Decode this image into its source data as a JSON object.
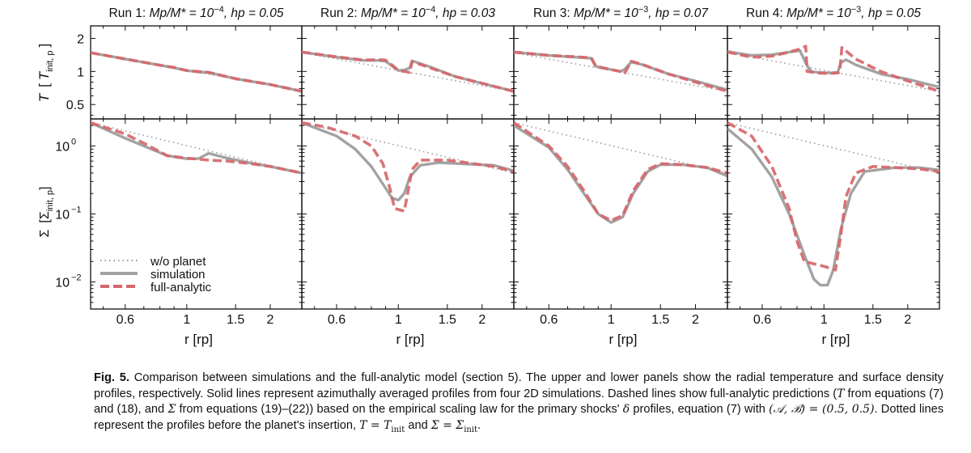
{
  "panel_titles": [
    {
      "run": "Run 1:",
      "ratio": "Mp/M* = 10",
      "exp": "−4",
      "h": "hp = 0.05"
    },
    {
      "run": "Run 2:",
      "ratio": "Mp/M* = 10",
      "exp": "−4",
      "h": "hp = 0.03"
    },
    {
      "run": "Run 3:",
      "ratio": "Mp/M* = 10",
      "exp": "−3",
      "h": "hp = 0.07"
    },
    {
      "run": "Run 4:",
      "ratio": "Mp/M* = 10",
      "exp": "−3",
      "h": "hp = 0.05"
    }
  ],
  "axes": {
    "top_ylabel": "T  [ T init, p ]",
    "bottom_ylabel": "Σ  [Σ init, p]",
    "xlabel": "r [rp]",
    "x_ticks": [
      "0.6",
      "1",
      "1.5",
      "2"
    ],
    "top_y_ticks": [
      "2",
      "1",
      "0.5"
    ],
    "bottom_y_ticks": [
      {
        "base": "10",
        "exp": "0"
      },
      {
        "base": "10",
        "exp": "−1"
      },
      {
        "base": "10",
        "exp": "−2"
      }
    ]
  },
  "legend": [
    "w/o planet",
    "simulation",
    "full-analytic"
  ],
  "colors": {
    "planet_free": "#999999",
    "simulation": "#a3a3a3",
    "analytic": "#d6676b"
  },
  "chart_data": {
    "type": "line",
    "x_scale": "log",
    "y_scale": "log",
    "xlim": [
      0.45,
      2.6
    ],
    "top_ylim": [
      0.37,
      2.6
    ],
    "bottom_ylim": [
      0.004,
      2.5
    ],
    "runs": [
      {
        "name": "Run 1",
        "T": {
          "no_planet": {
            "x": [
              0.45,
              2.6
            ],
            "y": [
              1.48,
              0.66
            ]
          },
          "simulation": {
            "x": [
              0.45,
              0.6,
              0.85,
              0.9,
              1.0,
              1.1,
              1.2,
              1.5,
              2.0,
              2.6
            ],
            "y": [
              1.48,
              1.3,
              1.11,
              1.08,
              1.02,
              0.99,
              0.98,
              0.86,
              0.76,
              0.66
            ]
          },
          "analytic": {
            "x": [
              0.45,
              0.6,
              0.85,
              0.9,
              1.0,
              1.1,
              1.2,
              1.5,
              2.0,
              2.6
            ],
            "y": [
              1.48,
              1.3,
              1.11,
              1.09,
              1.02,
              1.0,
              0.98,
              0.86,
              0.76,
              0.66
            ]
          }
        },
        "Sigma": {
          "no_planet": {
            "x": [
              0.45,
              2.6
            ],
            "y": [
              2.2,
              0.4
            ]
          },
          "simulation": {
            "x": [
              0.45,
              0.6,
              0.7,
              0.85,
              1.0,
              1.1,
              1.2,
              1.4,
              1.7,
              2.0,
              2.6
            ],
            "y": [
              2.2,
              1.3,
              1.0,
              0.72,
              0.65,
              0.65,
              0.78,
              0.66,
              0.56,
              0.5,
              0.4
            ]
          },
          "analytic": {
            "x": [
              0.45,
              0.6,
              0.7,
              0.85,
              1.0,
              1.1,
              1.2,
              1.4,
              1.7,
              2.0,
              2.6
            ],
            "y": [
              2.2,
              1.5,
              1.1,
              0.72,
              0.66,
              0.64,
              0.62,
              0.6,
              0.55,
              0.5,
              0.4
            ]
          }
        }
      },
      {
        "name": "Run 2",
        "T": {
          "no_planet": {
            "x": [
              0.45,
              2.6
            ],
            "y": [
              1.48,
              0.66
            ]
          },
          "simulation": {
            "x": [
              0.45,
              0.6,
              0.75,
              0.85,
              0.9,
              0.96,
              1.0,
              1.05,
              1.1,
              1.12,
              1.3,
              1.6,
              2.0,
              2.6
            ],
            "y": [
              1.5,
              1.35,
              1.26,
              1.26,
              1.24,
              1.1,
              1.02,
              1.03,
              1.08,
              1.25,
              1.1,
              0.9,
              0.78,
              0.66
            ]
          },
          "analytic": {
            "x": [
              0.45,
              0.6,
              0.75,
              0.85,
              0.9,
              0.96,
              1.0,
              1.05,
              1.1,
              1.12,
              1.3,
              1.6,
              2.0,
              2.6
            ],
            "y": [
              1.5,
              1.36,
              1.27,
              1.28,
              1.27,
              1.12,
              1.02,
              1.0,
              0.98,
              1.23,
              1.08,
              0.9,
              0.78,
              0.66
            ]
          }
        },
        "Sigma": {
          "no_planet": {
            "x": [
              0.45,
              2.6
            ],
            "y": [
              2.2,
              0.4
            ]
          },
          "simulation": {
            "x": [
              0.45,
              0.6,
              0.7,
              0.8,
              0.9,
              0.95,
              1.0,
              1.05,
              1.1,
              1.2,
              1.4,
              1.8,
              2.2,
              2.6
            ],
            "y": [
              2.2,
              1.4,
              0.9,
              0.5,
              0.24,
              0.17,
              0.16,
              0.2,
              0.35,
              0.52,
              0.57,
              0.54,
              0.52,
              0.43
            ]
          },
          "analytic": {
            "x": [
              0.45,
              0.55,
              0.7,
              0.8,
              0.88,
              0.93,
              0.97,
              1.05,
              1.08,
              1.12,
              1.2,
              1.5,
              1.8,
              2.2,
              2.6
            ],
            "y": [
              2.2,
              1.9,
              1.4,
              1.0,
              0.55,
              0.25,
              0.12,
              0.11,
              0.2,
              0.45,
              0.62,
              0.62,
              0.56,
              0.5,
              0.42
            ]
          }
        }
      },
      {
        "name": "Run 3",
        "T": {
          "no_planet": {
            "x": [
              0.45,
              2.6
            ],
            "y": [
              1.48,
              0.66
            ]
          },
          "simulation": {
            "x": [
              0.45,
              0.6,
              0.75,
              0.85,
              0.88,
              0.92,
              1.0,
              1.08,
              1.12,
              1.18,
              1.3,
              1.6,
              2.0,
              2.6
            ],
            "y": [
              1.5,
              1.4,
              1.35,
              1.32,
              1.12,
              1.08,
              1.04,
              1.0,
              1.05,
              1.22,
              1.15,
              0.95,
              0.82,
              0.68
            ]
          },
          "analytic": {
            "x": [
              0.45,
              0.6,
              0.75,
              0.85,
              0.88,
              0.92,
              1.0,
              1.08,
              1.12,
              1.18,
              1.3,
              1.6,
              2.0,
              2.6
            ],
            "y": [
              1.5,
              1.4,
              1.36,
              1.33,
              1.13,
              1.09,
              1.04,
              1.0,
              0.97,
              1.24,
              1.15,
              0.95,
              0.8,
              0.66
            ]
          }
        },
        "Sigma": {
          "no_planet": {
            "x": [
              0.45,
              2.6
            ],
            "y": [
              2.2,
              0.4
            ]
          },
          "simulation": {
            "x": [
              0.45,
              0.6,
              0.7,
              0.8,
              0.9,
              1.0,
              1.1,
              1.2,
              1.35,
              1.5,
              1.8,
              2.2,
              2.6
            ],
            "y": [
              2.0,
              0.95,
              0.45,
              0.2,
              0.1,
              0.075,
              0.09,
              0.2,
              0.42,
              0.53,
              0.53,
              0.48,
              0.36
            ]
          },
          "analytic": {
            "x": [
              0.45,
              0.6,
              0.7,
              0.8,
              0.9,
              1.0,
              1.1,
              1.2,
              1.35,
              1.5,
              1.8,
              2.2,
              2.6
            ],
            "y": [
              2.2,
              1.0,
              0.5,
              0.22,
              0.1,
              0.08,
              0.095,
              0.22,
              0.45,
              0.55,
              0.53,
              0.48,
              0.4
            ]
          }
        }
      },
      {
        "name": "Run 4",
        "T": {
          "no_planet": {
            "x": [
              0.45,
              2.6
            ],
            "y": [
              1.48,
              0.66
            ]
          },
          "simulation": {
            "x": [
              0.45,
              0.55,
              0.65,
              0.75,
              0.82,
              0.86,
              0.88,
              0.9,
              0.95,
              1.05,
              1.12,
              1.15,
              1.2,
              1.3,
              1.6,
              2.0,
              2.6
            ],
            "y": [
              1.52,
              1.4,
              1.42,
              1.5,
              1.55,
              1.2,
              1.08,
              1.0,
              0.98,
              0.97,
              0.98,
              1.2,
              1.28,
              1.15,
              0.95,
              0.85,
              0.72
            ]
          },
          "analytic": {
            "x": [
              0.45,
              0.55,
              0.65,
              0.75,
              0.82,
              0.86,
              0.87,
              0.9,
              0.95,
              1.05,
              1.12,
              1.14,
              1.16,
              1.3,
              1.6,
              2.0,
              2.6
            ],
            "y": [
              1.5,
              1.35,
              1.38,
              1.5,
              1.6,
              1.7,
              1.0,
              0.99,
              0.97,
              0.96,
              0.97,
              0.99,
              1.65,
              1.3,
              1.0,
              0.82,
              0.66
            ]
          }
        },
        "Sigma": {
          "no_planet": {
            "x": [
              0.45,
              2.6
            ],
            "y": [
              2.2,
              0.4
            ]
          },
          "simulation": {
            "x": [
              0.45,
              0.55,
              0.65,
              0.75,
              0.85,
              0.92,
              0.97,
              1.03,
              1.08,
              1.15,
              1.25,
              1.4,
              1.8,
              2.2,
              2.6
            ],
            "y": [
              1.8,
              0.9,
              0.35,
              0.1,
              0.025,
              0.011,
              0.009,
              0.009,
              0.015,
              0.06,
              0.2,
              0.42,
              0.48,
              0.48,
              0.44
            ]
          },
          "analytic": {
            "x": [
              0.45,
              0.55,
              0.65,
              0.75,
              0.8,
              0.85,
              1.0,
              1.1,
              1.15,
              1.2,
              1.3,
              1.5,
              1.8,
              2.2,
              2.6
            ],
            "y": [
              2.2,
              1.4,
              0.5,
              0.12,
              0.04,
              0.02,
              0.017,
              0.015,
              0.05,
              0.18,
              0.4,
              0.5,
              0.48,
              0.46,
              0.42
            ]
          }
        }
      }
    ]
  },
  "caption": {
    "label": "Fig. 5.",
    "text": "Comparison between simulations and the full-analytic model (section 5). The upper and lower panels show the radial temperature and surface density profiles, respectively. Solid lines represent azimuthally averaged profiles from four 2D simulations. Dashed lines show full-analytic predictions",
    "paren_T": "T",
    "s1": " from equations (7) and (18), and ",
    "paren_S": "Σ",
    "s2": " from equations (19)–(22)) based on the empirical scaling law for the primary shocks' ",
    "delta": "δ",
    "s3": " profiles, equation (7) with ",
    "AB": "(𝒜, ℬ) = (0.5, 0.5)",
    "s4": ". Dotted lines represent the profiles before the planet's insertion, ",
    "eq": "T = T",
    "eq_sub": "init",
    "s5": " and ",
    "eq2": "Σ = Σ",
    "eq2_sub": "init",
    "s6": "."
  }
}
